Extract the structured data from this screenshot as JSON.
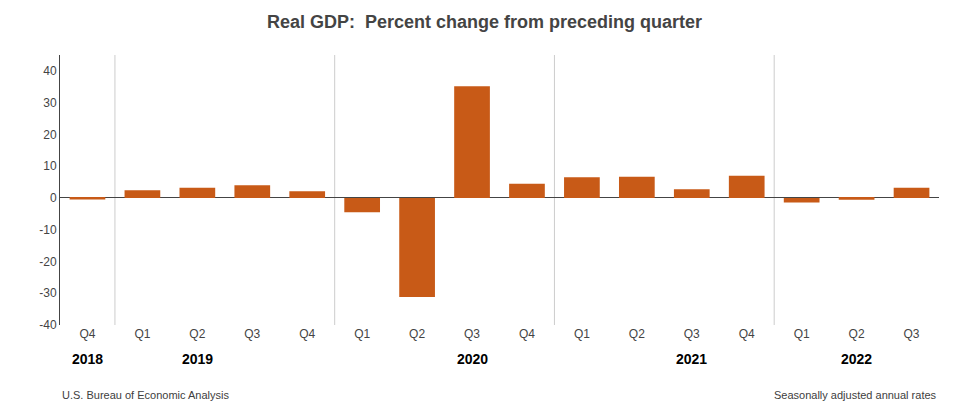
{
  "chart_data": {
    "type": "bar",
    "title": "Real GDP:  Percent change from preceding quarter",
    "categories": [
      "Q4",
      "Q1",
      "Q2",
      "Q3",
      "Q4",
      "Q1",
      "Q2",
      "Q3",
      "Q4",
      "Q1",
      "Q2",
      "Q3",
      "Q4",
      "Q1",
      "Q2",
      "Q3"
    ],
    "values": [
      -0.5,
      2.4,
      3.2,
      4.0,
      2.1,
      -4.5,
      -31.2,
      35.2,
      4.5,
      6.5,
      6.7,
      2.7,
      7.0,
      -1.4,
      -0.6,
      3.2
    ],
    "color": "#C85A17",
    "ylim": [
      -40,
      45
    ],
    "yticks": [
      -40,
      -30,
      -20,
      -10,
      0,
      10,
      20,
      30,
      40
    ],
    "grid": false,
    "annotations": [
      {
        "text": "2018",
        "x": 0
      },
      {
        "text": "2019",
        "x": 2
      },
      {
        "text": "2020",
        "x": 7
      },
      {
        "text": "2021",
        "x": 11
      },
      {
        "text": "2022",
        "x": 14
      }
    ],
    "footer": [
      "U.S. Bureau of Economic Analysis",
      "Seasonally adjusted annual rates"
    ]
  }
}
